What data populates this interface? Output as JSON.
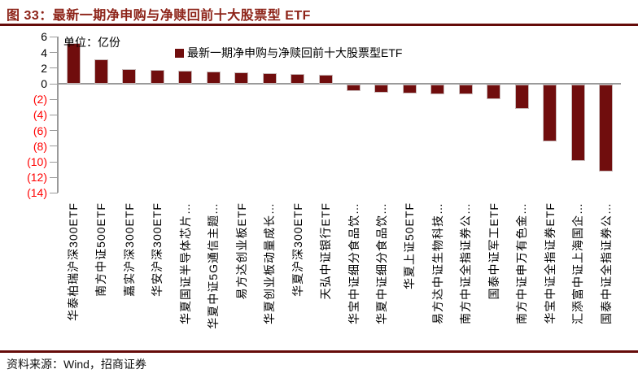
{
  "header": {
    "title": "图 33：最新一期净申购与净赎回前十大股票型 ETF"
  },
  "footer": {
    "source": "资料来源：Wind，招商证券"
  },
  "chart_data": {
    "type": "bar",
    "title": "最新一期净申购与净赎回前十大股票型 ETF",
    "unit_label": "单位：亿份",
    "legend": [
      "最新一期净申购与净赎回前十大股票型ETF"
    ],
    "legend_position": "top",
    "grid": false,
    "categories": [
      "华泰柏瑞沪深300ETF",
      "南方中证500ETF",
      "嘉实沪深300ETF",
      "华安沪深300ETF",
      "华夏国证半导体芯片…",
      "华夏中证5G通信主题…",
      "易方达创业板ETF",
      "华夏创业板动量成长…",
      "华夏沪深300ETF",
      "天弘中证银行ETF",
      "华宝中证细分食品饮…",
      "华夏中证细分食品饮…",
      "华夏上证50ETF",
      "易方达中证生物科技…",
      "南方中证全指证券公…",
      "国泰中证军工ETF",
      "南方中证申万有色金…",
      "华宝中证全指证券ETF",
      "汇添富中证上海国企…",
      "国泰中证全指证券公…"
    ],
    "values": [
      5.2,
      3.1,
      1.9,
      1.75,
      1.65,
      1.55,
      1.45,
      1.35,
      1.25,
      1.15,
      -0.85,
      -1.0,
      -1.1,
      -1.2,
      -1.3,
      -1.9,
      -3.1,
      -7.3,
      -9.8,
      -11.1
    ],
    "xlabel": "",
    "ylabel": "亿份",
    "ylim": [
      -14,
      6
    ],
    "y_ticks": {
      "labels": [
        "6",
        "4",
        "2",
        "0",
        "(2)",
        "(4)",
        "(6)",
        "(8)",
        "(10)",
        "(12)",
        "(14)"
      ],
      "values": [
        6,
        4,
        2,
        0,
        -2,
        -4,
        -6,
        -8,
        -10,
        -12,
        -14
      ]
    },
    "colors": {
      "bar": "#700d0d",
      "title": "#8d2318",
      "rule": "#650b09",
      "negative_tick": "#ff0000",
      "positive_tick": "#000000",
      "axis": "#9a9a9a"
    }
  }
}
